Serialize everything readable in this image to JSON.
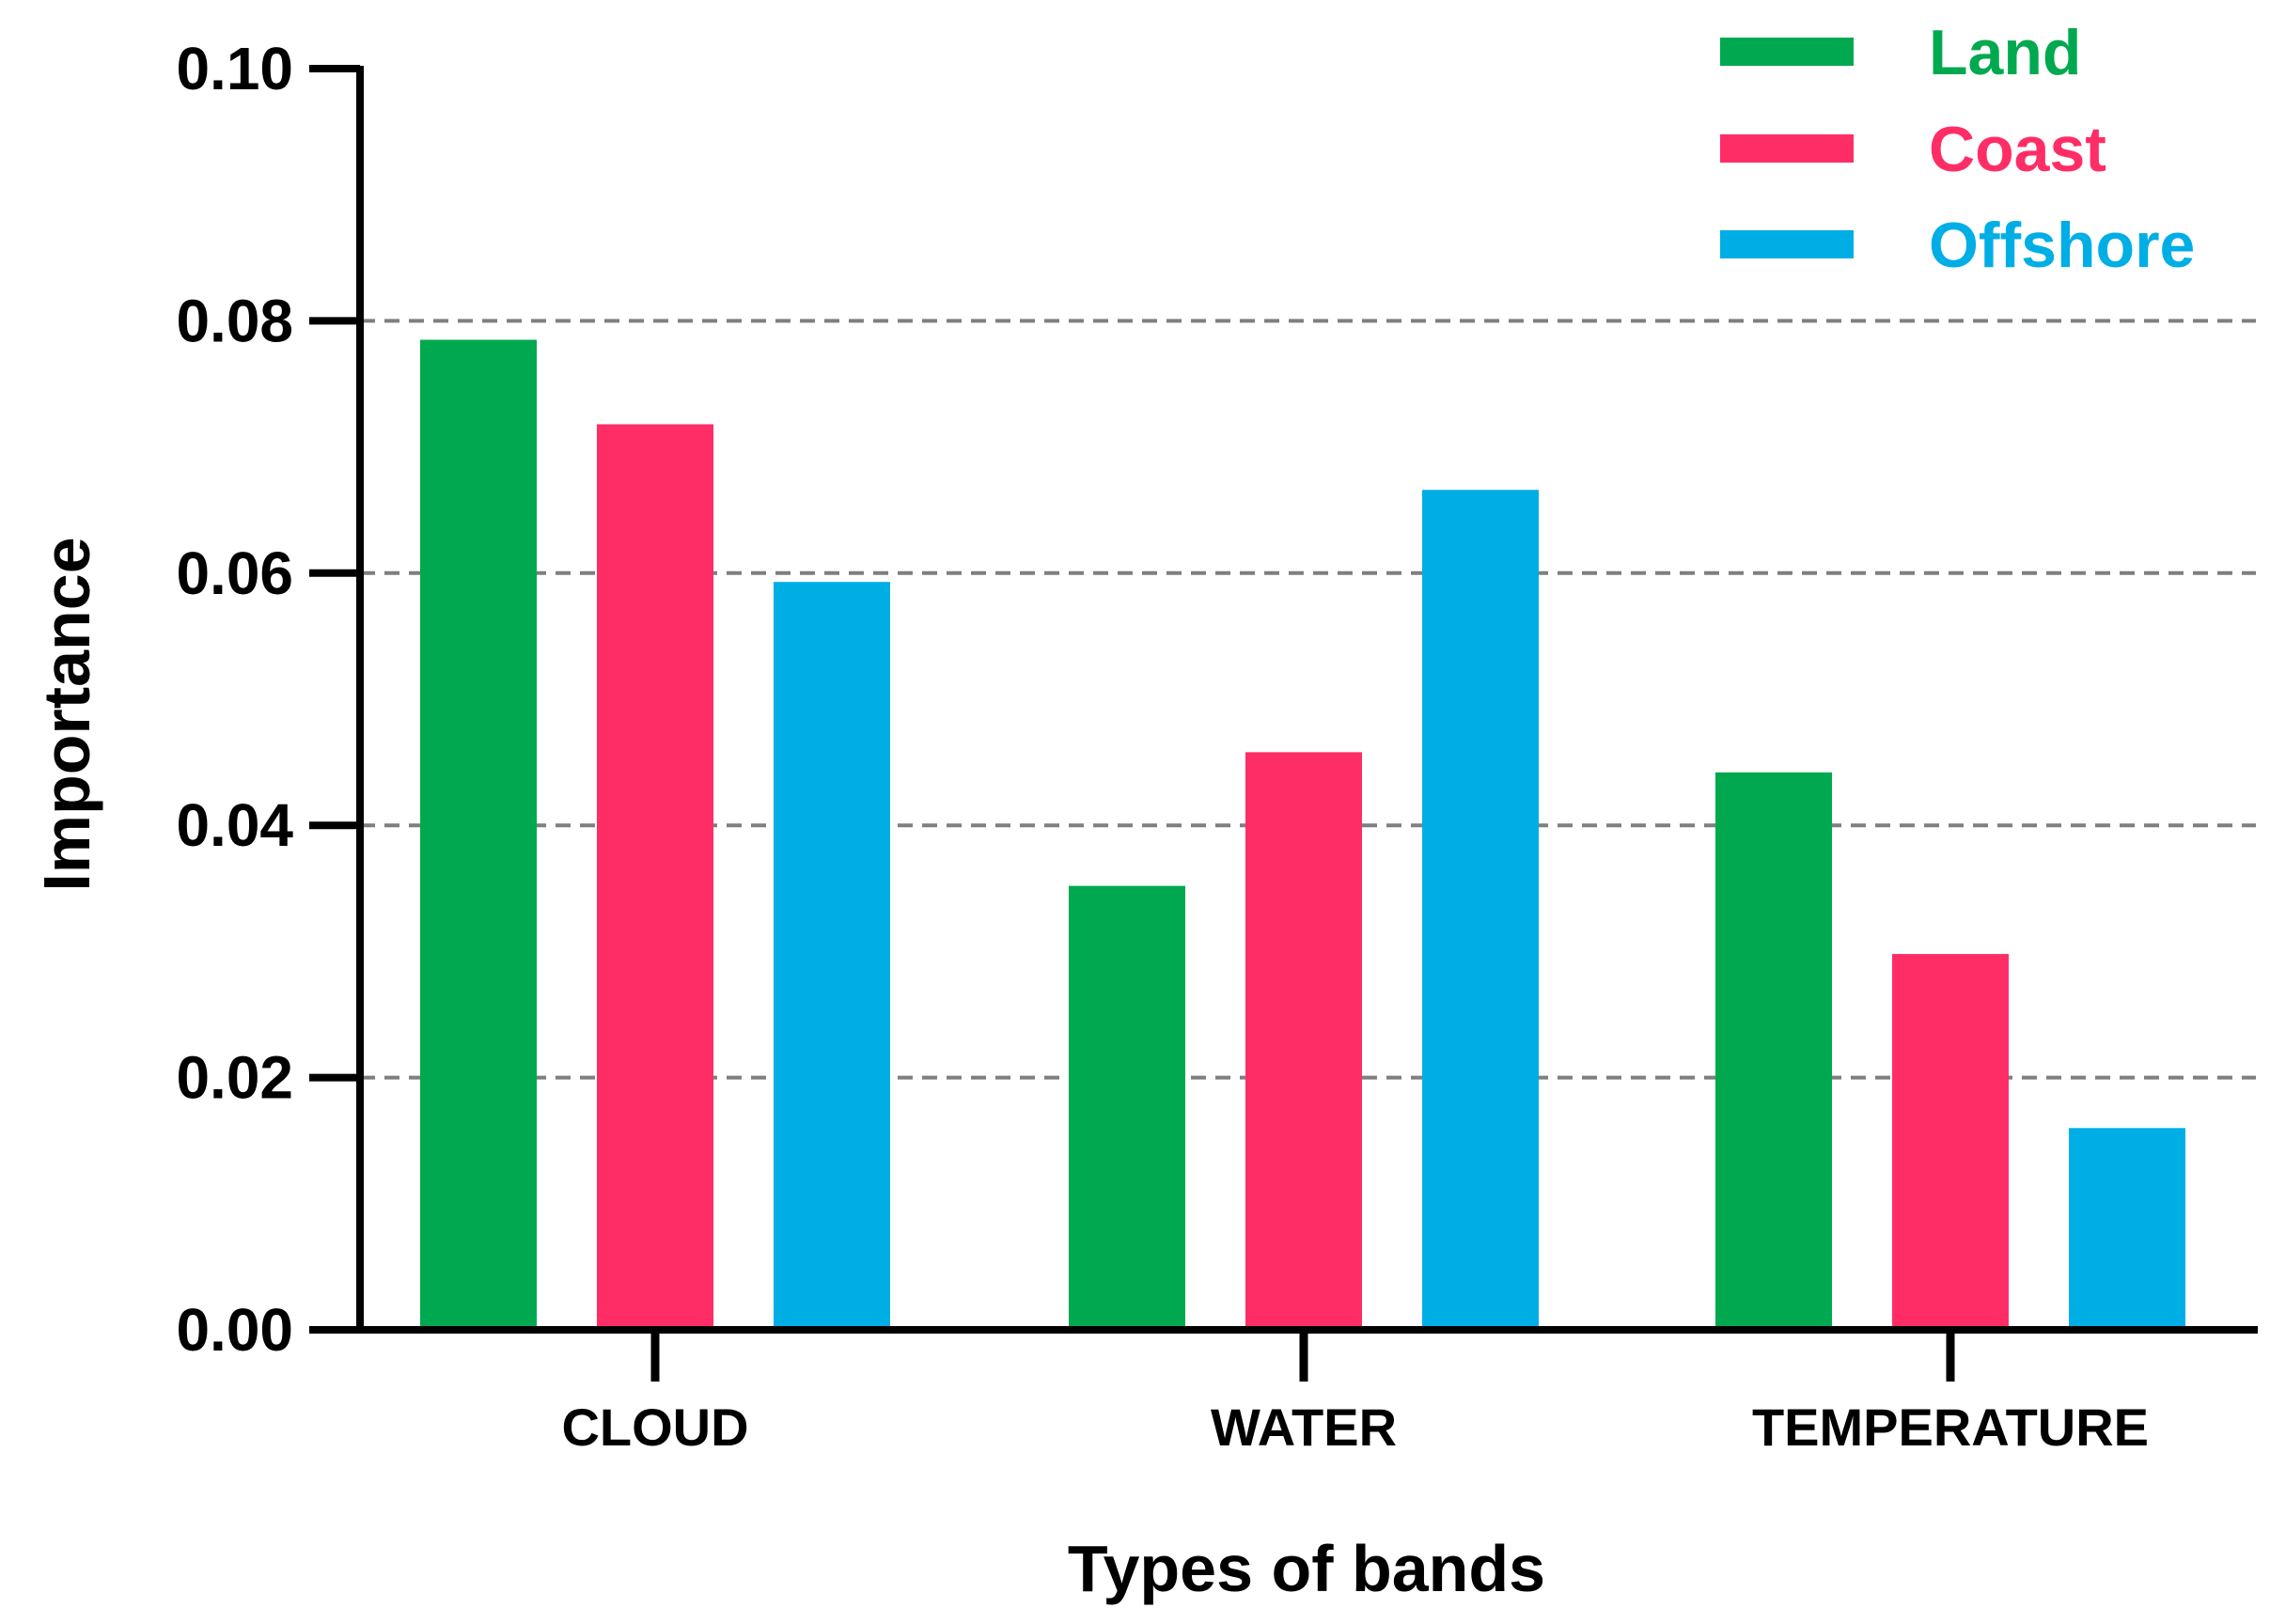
{
  "chart_data": {
    "type": "bar",
    "categories": [
      "CLOUD",
      "WATER",
      "TEMPERATURE"
    ],
    "series": [
      {
        "name": "Land",
        "color": "#00A94F",
        "values": [
          0.0785,
          0.0352,
          0.0442
        ]
      },
      {
        "name": "Coast",
        "color": "#FF2D66",
        "values": [
          0.0718,
          0.0458,
          0.0298
        ]
      },
      {
        "name": "Offshore",
        "color": "#00AEE6",
        "values": [
          0.0593,
          0.0666,
          0.016
        ]
      }
    ],
    "xlabel": "Types of bands",
    "ylabel": "Importance",
    "ylim": [
      0,
      0.1
    ],
    "yticks": [
      "0.00",
      "0.02",
      "0.04",
      "0.06",
      "0.08",
      "0.10"
    ],
    "grid": "horizontal dashed",
    "legend": "top-right"
  }
}
